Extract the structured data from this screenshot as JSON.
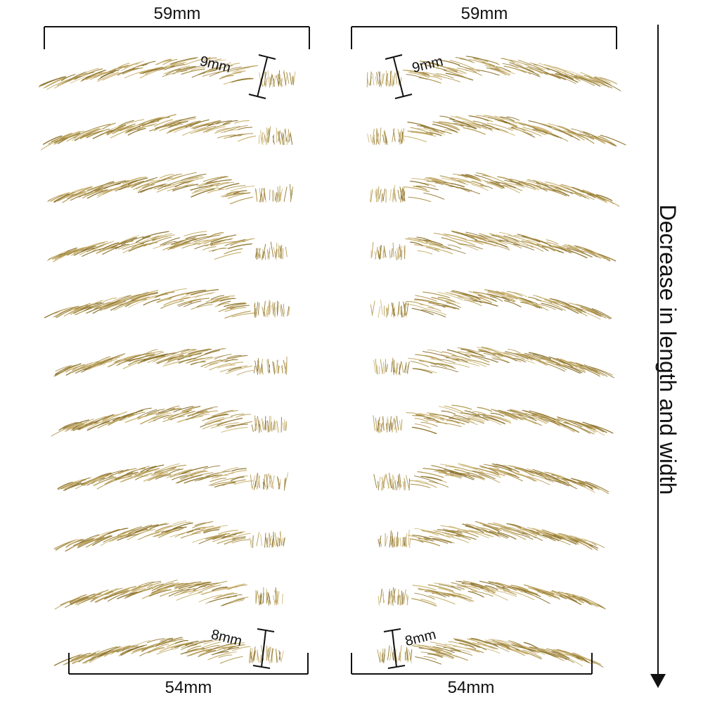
{
  "labels": {
    "top_left_width": "59mm",
    "top_right_width": "59mm",
    "bottom_left_width": "54mm",
    "bottom_right_width": "54mm",
    "top_left_height": "9mm",
    "top_right_height": "9mm",
    "bottom_left_height": "8mm",
    "bottom_right_height": "8mm",
    "side_caption": "Decrease in length and width"
  },
  "colors": {
    "brow_dark": "#8f7633",
    "brow_mid": "#b39a55",
    "brow_light": "#cdb77a",
    "ink": "#111111"
  },
  "icons": {
    "arrow": "down-arrow-icon"
  },
  "brow_rows": 11
}
